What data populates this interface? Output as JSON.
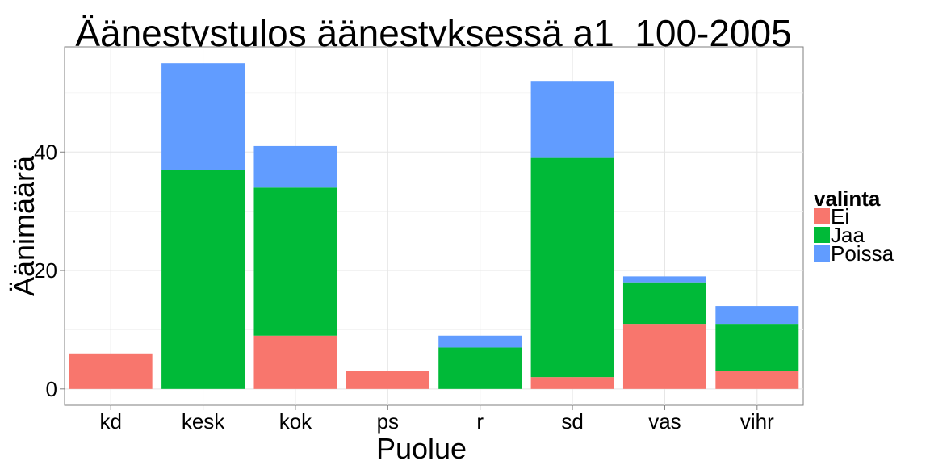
{
  "chart_data": {
    "type": "bar",
    "stacked": true,
    "title": "Äänestystulos äänestyksessä a1_100-2005",
    "xlabel": "Puolue",
    "ylabel": "Äänimäärä",
    "categories": [
      "kd",
      "kesk",
      "kok",
      "ps",
      "r",
      "sd",
      "vas",
      "vihr"
    ],
    "series": [
      {
        "name": "Ei",
        "color": "#F8766D",
        "values": [
          6,
          0,
          9,
          3,
          0,
          2,
          11,
          3
        ]
      },
      {
        "name": "Jaa",
        "color": "#00BA38",
        "values": [
          0,
          37,
          25,
          0,
          7,
          37,
          7,
          8
        ]
      },
      {
        "name": "Poissa",
        "color": "#619CFF",
        "values": [
          0,
          18,
          7,
          0,
          2,
          13,
          1,
          3
        ]
      }
    ],
    "ylim": [
      -2.75,
      57.75
    ],
    "yticks": [
      0,
      20,
      40
    ],
    "grid": true,
    "legend": {
      "title": "valinta",
      "position": "right"
    }
  }
}
